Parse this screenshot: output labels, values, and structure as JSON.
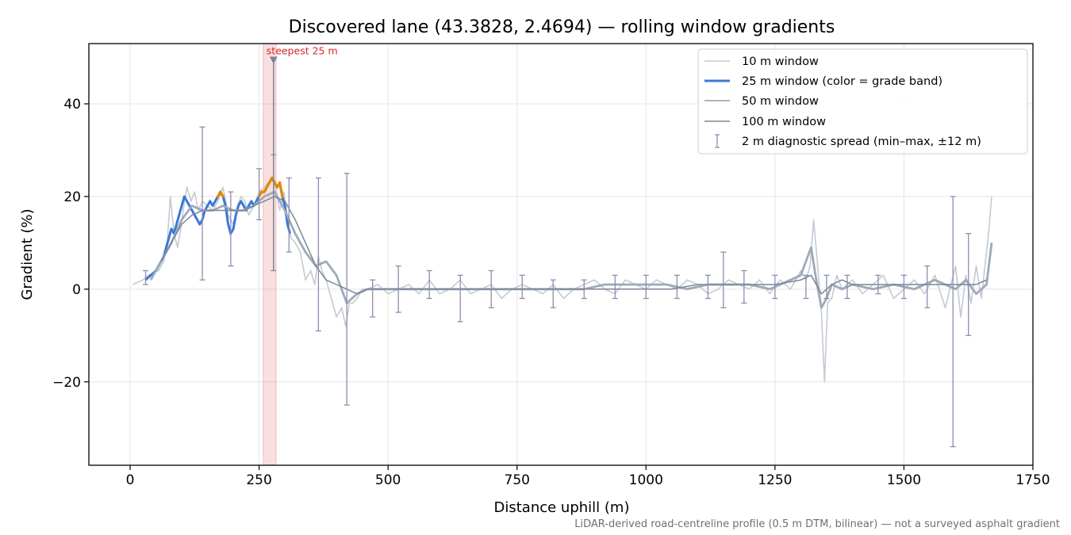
{
  "chart_data": {
    "type": "line",
    "title": "Discovered lane (43.3828, 2.4694) — rolling window gradients",
    "xlabel": "Distance uphill (m)",
    "ylabel": "Gradient (%)",
    "xlim": [
      -80,
      1750
    ],
    "ylim": [
      -38,
      53
    ],
    "x_ticks": [
      0,
      250,
      500,
      750,
      1000,
      1250,
      1500,
      1750
    ],
    "y_ticks": [
      -20,
      0,
      20,
      40
    ],
    "grid": true,
    "legend_position": "top-right",
    "footnote": "LiDAR-derived road-centreline profile (0.5 m DTM, bilinear) — not a surveyed asphalt gradient",
    "highlight": {
      "label": "steepest 25 m",
      "x_start": 258,
      "x_end": 283,
      "marker_x": 278,
      "marker_y": 49.5
    },
    "colors": {
      "band_normal": "#3a78d8",
      "band_steep": "#e08a00",
      "highlight": "#d62728",
      "spread": "#8f8cb0"
    },
    "series": [
      {
        "name": "10 m window",
        "color": "#c3cad4",
        "x": [
          5,
          15,
          25,
          35,
          45,
          55,
          65,
          72,
          78,
          85,
          92,
          98,
          104,
          110,
          118,
          125,
          132,
          140,
          150,
          160,
          170,
          180,
          190,
          200,
          208,
          215,
          222,
          230,
          240,
          250,
          260,
          268,
          275,
          282,
          290,
          298,
          305,
          312,
          320,
          330,
          340,
          350,
          358,
          365,
          372,
          380,
          390,
          400,
          410,
          418,
          425,
          432,
          440,
          450,
          460,
          480,
          500,
          520,
          540,
          560,
          580,
          600,
          620,
          640,
          660,
          680,
          700,
          720,
          740,
          760,
          780,
          800,
          820,
          840,
          860,
          880,
          900,
          920,
          940,
          960,
          980,
          1000,
          1020,
          1040,
          1060,
          1080,
          1100,
          1120,
          1140,
          1160,
          1180,
          1200,
          1220,
          1240,
          1260,
          1280,
          1300,
          1310,
          1318,
          1325,
          1332,
          1340,
          1346,
          1352,
          1360,
          1370,
          1380,
          1400,
          1420,
          1440,
          1460,
          1480,
          1500,
          1520,
          1540,
          1560,
          1580,
          1600,
          1610,
          1620,
          1630,
          1640,
          1650,
          1658,
          1665,
          1670
        ],
        "y": [
          1,
          1.5,
          2,
          3,
          3.5,
          4,
          6,
          10,
          20,
          12,
          9,
          13,
          18,
          22,
          19,
          21,
          17,
          19,
          18,
          17,
          19,
          22,
          16,
          14,
          18,
          20,
          19,
          16,
          18,
          21,
          22,
          23,
          24,
          22,
          17,
          21,
          15,
          11,
          10,
          8,
          2,
          4,
          1,
          7,
          4,
          2,
          -2,
          -6,
          -4,
          -8,
          -3,
          -3,
          -2,
          0,
          0,
          1,
          -1,
          0,
          1,
          -1,
          2,
          -1,
          0,
          2,
          -1,
          0,
          1,
          -2,
          0,
          1,
          0,
          -1,
          1,
          -2,
          0,
          1,
          2,
          0,
          -1,
          2,
          1,
          0,
          2,
          1,
          0,
          2,
          1,
          -1,
          0,
          2,
          1,
          0,
          2,
          -1,
          2,
          0,
          4,
          2,
          5,
          15,
          6,
          -5,
          -20,
          -3,
          -2,
          3,
          0,
          2,
          -1,
          1,
          3,
          -2,
          0,
          2,
          -1,
          3,
          -4,
          5,
          -6,
          3,
          -3,
          5,
          -2,
          6,
          13,
          20
        ]
      },
      {
        "name": "25 m window (color = grade band)",
        "color": "#3a78d8",
        "x": [
          30,
          40,
          50,
          55,
          60,
          65,
          70,
          75,
          80,
          85,
          90,
          95,
          100,
          105,
          110,
          115,
          120,
          125,
          130,
          135,
          140,
          145,
          150,
          155,
          160,
          165,
          170,
          175,
          180,
          185,
          190,
          195,
          200,
          205,
          210,
          215,
          220,
          225,
          230,
          235,
          240,
          245,
          250,
          255,
          260,
          265,
          270,
          275,
          280,
          285,
          290,
          295,
          300,
          305,
          310
        ],
        "y": [
          2,
          3,
          4,
          5,
          6,
          7,
          9,
          11,
          13,
          12,
          14,
          16,
          18,
          20,
          19,
          18,
          17,
          16,
          15,
          14,
          15,
          17,
          18,
          19,
          18,
          19,
          20,
          21,
          20,
          18,
          14,
          12,
          13,
          16,
          18,
          19,
          18,
          17,
          18,
          19,
          18,
          19,
          20,
          21,
          21,
          22,
          23,
          24,
          23,
          22,
          23,
          20,
          18,
          14,
          12
        ]
      },
      {
        "name": "50 m window",
        "color": "#9ea9b8",
        "x": [
          40,
          60,
          80,
          100,
          120,
          140,
          160,
          180,
          200,
          220,
          240,
          260,
          280,
          300,
          320,
          340,
          360,
          380,
          400,
          420,
          440,
          460,
          480,
          520,
          560,
          600,
          640,
          680,
          720,
          760,
          800,
          840,
          880,
          920,
          960,
          1000,
          1040,
          1080,
          1120,
          1160,
          1200,
          1240,
          1280,
          1300,
          1320,
          1330,
          1340,
          1350,
          1360,
          1380,
          1400,
          1440,
          1480,
          1520,
          1560,
          1600,
          1620,
          1640,
          1660,
          1670
        ],
        "y": [
          2,
          6,
          10,
          15,
          18,
          17,
          17,
          18,
          17,
          17,
          18,
          20,
          21,
          17,
          12,
          8,
          5,
          6,
          3,
          -3,
          -1,
          0,
          0,
          0,
          0,
          0,
          0,
          0,
          0,
          0,
          0,
          0,
          0,
          1,
          1,
          1,
          1,
          0,
          1,
          1,
          1,
          0,
          2,
          3,
          9,
          2,
          -4,
          -2,
          1,
          0,
          1,
          0,
          1,
          0,
          2,
          0,
          2,
          -1,
          1,
          10
        ]
      },
      {
        "name": "100 m window",
        "color": "#7c8594",
        "x": [
          60,
          80,
          100,
          120,
          140,
          160,
          180,
          200,
          220,
          240,
          260,
          280,
          300,
          320,
          340,
          360,
          380,
          400,
          420,
          440,
          460,
          480,
          500,
          550,
          600,
          650,
          700,
          750,
          800,
          850,
          900,
          950,
          1000,
          1050,
          1100,
          1150,
          1200,
          1250,
          1300,
          1320,
          1340,
          1360,
          1380,
          1400,
          1450,
          1500,
          1550,
          1600,
          1640,
          1660
        ],
        "y": [
          6,
          10,
          14,
          16,
          17,
          17,
          17,
          17,
          17,
          18,
          19,
          20,
          19,
          15,
          10,
          5,
          2,
          1,
          0,
          -1,
          0,
          0,
          0,
          0,
          0,
          0,
          0,
          0,
          0,
          0,
          0,
          0,
          0,
          0,
          1,
          1,
          1,
          1,
          2,
          3,
          -1,
          1,
          2,
          1,
          1,
          1,
          1,
          1,
          1,
          2
        ]
      }
    ],
    "error_bars": {
      "name": "2 m diagnostic spread (min–max, ±12 m)",
      "x": [
        30,
        140,
        195,
        250,
        278,
        308,
        365,
        420,
        470,
        520,
        580,
        640,
        700,
        760,
        820,
        880,
        940,
        1000,
        1060,
        1120,
        1150,
        1190,
        1250,
        1310,
        1350,
        1390,
        1450,
        1500,
        1545,
        1595,
        1625
      ],
      "y": [
        2,
        17,
        17,
        20,
        22,
        18,
        8,
        2,
        0,
        0,
        0,
        0,
        0,
        1,
        0,
        0,
        0,
        1,
        0,
        1,
        2,
        1,
        0,
        2,
        0,
        1,
        1,
        0,
        0,
        1,
        1
      ],
      "lo": [
        1,
        2,
        5,
        15,
        4,
        8,
        -9,
        -25,
        -6,
        -5,
        -2,
        -7,
        -4,
        -2,
        -4,
        -2,
        -2,
        -2,
        -2,
        -2,
        -4,
        -3,
        -2,
        -2,
        -2,
        -2,
        -1,
        -2,
        -4,
        -34,
        -10
      ],
      "hi": [
        4,
        35,
        21,
        26,
        29,
        24,
        24,
        25,
        2,
        5,
        4,
        3,
        4,
        3,
        2,
        2,
        3,
        3,
        3,
        3,
        8,
        4,
        3,
        3,
        3,
        3,
        3,
        3,
        5,
        20,
        12
      ]
    }
  }
}
